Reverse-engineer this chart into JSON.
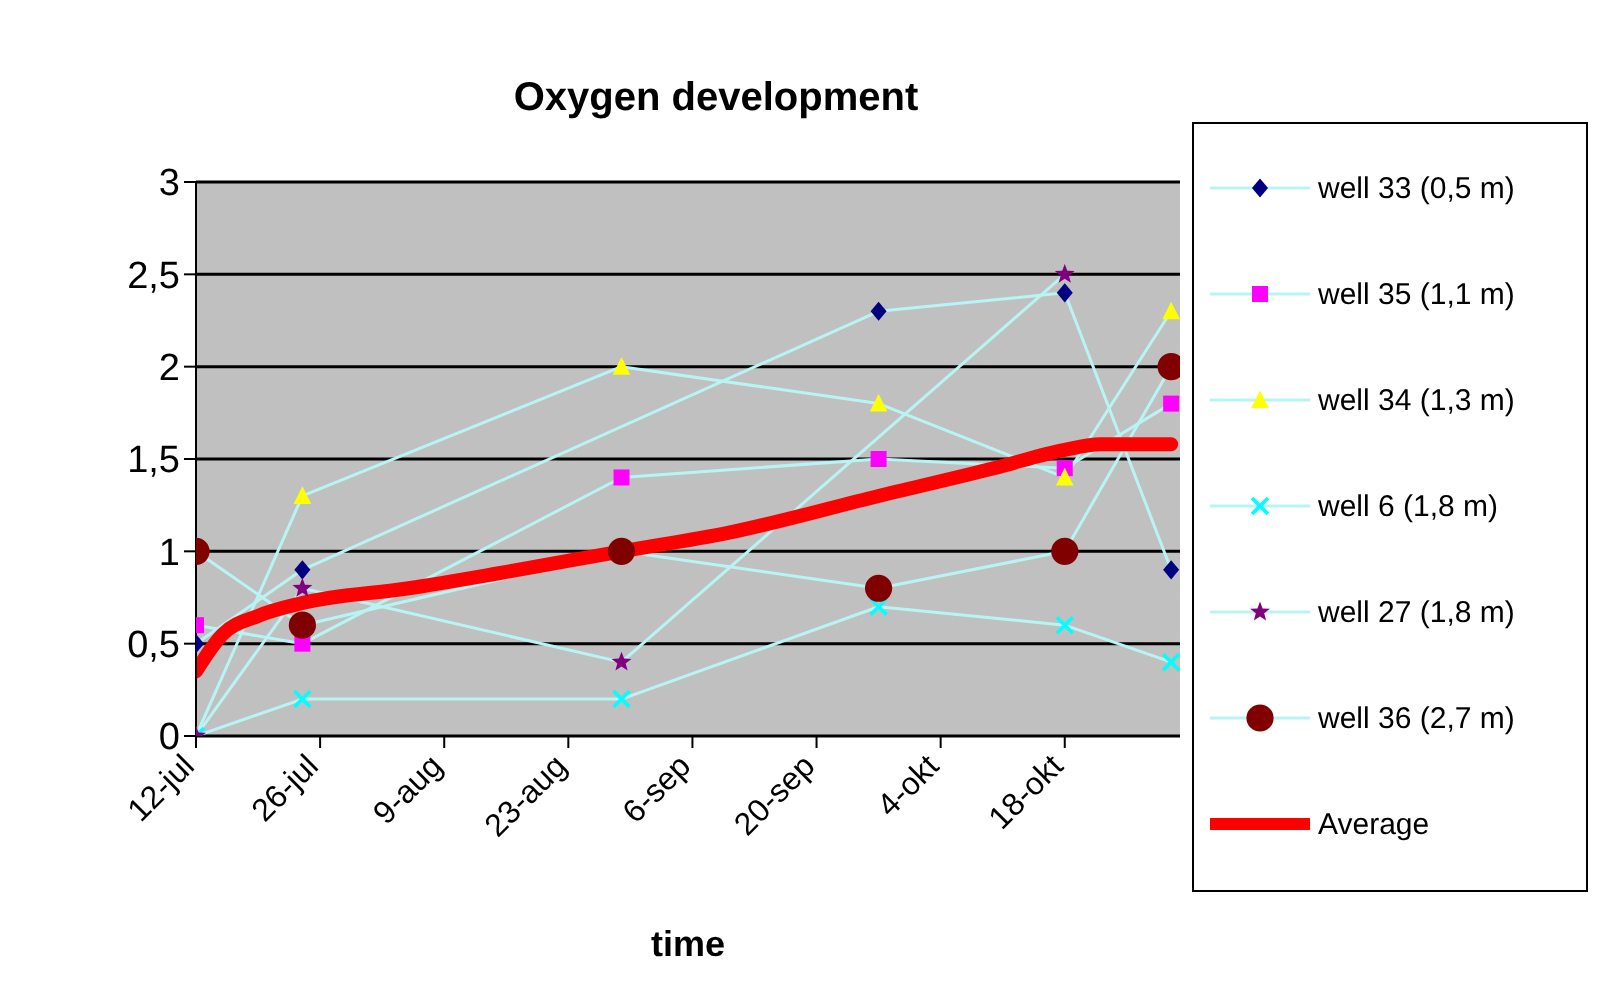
{
  "chart_data": {
    "type": "line",
    "title": "Oxygen development",
    "xlabel": "time",
    "x": [
      "--07-12",
      "--07-24",
      "--08-29",
      "--09-27",
      "--10-18",
      "--10-30"
    ],
    "series": [
      {
        "name": "well 33 (0,5 m)",
        "color": "#000080",
        "marker": "diamond",
        "values": [
          0.5,
          0.9,
          null,
          2.3,
          2.4,
          0.9
        ]
      },
      {
        "name": "well 35 (1,1 m)",
        "color": "#ff00ff",
        "marker": "square",
        "values": [
          0.6,
          0.5,
          1.4,
          1.5,
          1.45,
          1.8
        ]
      },
      {
        "name": "well 34 (1,3 m)",
        "color": "#ffff00",
        "marker": "triangle",
        "values": [
          0,
          1.3,
          2.0,
          1.8,
          1.4,
          2.3
        ]
      },
      {
        "name": "well 6 (1,8 m)",
        "color": "#00ffff",
        "marker": "cross",
        "values": [
          0,
          0.2,
          0.2,
          0.7,
          0.6,
          0.4
        ]
      },
      {
        "name": "well 27 (1,8 m)",
        "color": "#800080",
        "marker": "star",
        "values": [
          0,
          0.8,
          0.4,
          null,
          2.5,
          null
        ]
      },
      {
        "name": "well 36 (2,7 m)",
        "color": "#800000",
        "marker": "circle",
        "values": [
          1.0,
          0.6,
          1.0,
          0.8,
          1.0,
          2.0
        ]
      },
      {
        "name": "Average",
        "color": "#ff0000",
        "marker": "none",
        "x": [
          "--07-12",
          "--07-15",
          "--07-19",
          "--07-24",
          "--08-05",
          "--08-15",
          "--08-29",
          "--09-10",
          "--09-27",
          "--10-10",
          "--10-18",
          "--10-22",
          "--10-30"
        ],
        "values": [
          0.35,
          0.55,
          0.65,
          0.72,
          0.8,
          0.88,
          1.0,
          1.1,
          1.3,
          1.45,
          1.55,
          1.58,
          1.58
        ]
      }
    ],
    "xlim": [
      "--07-12",
      "--10-31"
    ],
    "xticks": [
      {
        "value": "--07-12",
        "label": "12-jul"
      },
      {
        "value": "--07-26",
        "label": "26-jul"
      },
      {
        "value": "--08-09",
        "label": "9-aug"
      },
      {
        "value": "--08-23",
        "label": "23-aug"
      },
      {
        "value": "--09-06",
        "label": "6-sep"
      },
      {
        "value": "--09-20",
        "label": "20-sep"
      },
      {
        "value": "--10-04",
        "label": "4-okt"
      },
      {
        "value": "--10-18",
        "label": "18-okt"
      }
    ],
    "ylim": [
      0,
      3
    ],
    "yticks": [
      0,
      {
        "value": 0.5,
        "label": "0,5"
      },
      1,
      {
        "value": 1.5,
        "label": "1,5"
      },
      2,
      {
        "value": 2.5,
        "label": "2,5"
      },
      3
    ],
    "grid": "y",
    "legend": "right",
    "line_style": "solid"
  }
}
